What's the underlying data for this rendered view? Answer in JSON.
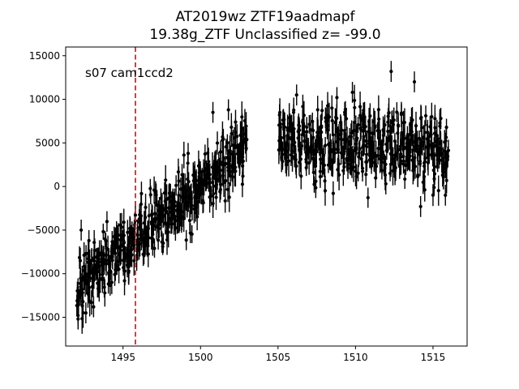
{
  "chart_data": {
    "type": "scatter",
    "title_line1": "AT2019wz  ZTF19aadmapf",
    "title_line2": "19.38g_ZTF Unclassified z= -99.0",
    "annotation": "s07 cam1ccd2",
    "xlabel": "",
    "ylabel": "",
    "xlim": [
      1491.3,
      1517.2
    ],
    "ylim": [
      -18300,
      16000
    ],
    "xticks": [
      1495,
      1500,
      1505,
      1510,
      1515
    ],
    "yticks": [
      -15000,
      -10000,
      -5000,
      0,
      5000,
      10000,
      15000
    ],
    "grid": false,
    "marker_color": "#000000",
    "vline": {
      "x": 1495.8,
      "color": "#d62728",
      "style": "dashed"
    },
    "segments": [
      {
        "x_start": 1492.0,
        "x_end": 1503.0,
        "values": [
          -13500,
          -11000,
          -12500,
          -10800,
          -9800,
          -11200,
          -10500,
          -9600,
          -8900,
          -10200,
          -9300,
          -8700,
          -8200,
          -9500,
          -8800,
          -7600,
          -8400,
          -7900,
          -6800,
          -7500,
          -6900,
          -8100,
          -7200,
          -6400,
          -5200,
          -6100,
          -5600,
          -4800,
          -5900,
          -4200,
          -5100,
          -3800,
          -4600,
          -3500,
          -4200,
          -3100,
          -3900,
          -2600,
          -3400,
          -2200,
          -2900,
          -1800,
          -2500,
          -1300,
          -2100,
          -900,
          -1700,
          -500,
          -1200,
          -100,
          -800,
          300,
          -400,
          800,
          100,
          1200,
          500,
          1700,
          900,
          2200,
          1400,
          2600,
          1800,
          3100,
          2300,
          3600,
          2700,
          4000,
          3200,
          4400,
          3600,
          4800
        ]
      },
      {
        "x_start": 1505.0,
        "x_end": 1516.0,
        "values": [
          6500,
          4200,
          5800,
          3600,
          5200,
          4800,
          6100,
          3900,
          5500,
          4300,
          6800,
          3500,
          5900,
          4700,
          5300,
          2800,
          6300,
          4100,
          5600,
          3300,
          6900,
          4500,
          5100,
          2600,
          6200,
          3800,
          5700,
          4400,
          6600,
          3100,
          5400,
          4900,
          6000,
          3400,
          5800,
          4200,
          6400,
          2900,
          5500,
          4600,
          5200,
          3700,
          6700,
          4000,
          5300,
          3200,
          5900,
          4800,
          5000,
          2700,
          6100,
          3600,
          5600,
          4300,
          4900,
          3000,
          5800,
          4100,
          5400,
          3500,
          6200,
          2800,
          5100,
          4400,
          5700,
          3300,
          4800,
          3900,
          5500,
          3100,
          5000,
          4200
        ]
      }
    ],
    "outliers": [
      {
        "x": 1492.1,
        "y": -15200
      },
      {
        "x": 1492.6,
        "y": -14500
      },
      {
        "x": 1493.1,
        "y": -13800
      },
      {
        "x": 1492.3,
        "y": -5000
      },
      {
        "x": 1492.8,
        "y": -6200
      },
      {
        "x": 1499.2,
        "y": 3800
      },
      {
        "x": 1500.8,
        "y": 8500
      },
      {
        "x": 1501.8,
        "y": 8800
      },
      {
        "x": 1506.2,
        "y": 10500
      },
      {
        "x": 1508.8,
        "y": 10200
      },
      {
        "x": 1509.8,
        "y": 10800
      },
      {
        "x": 1512.3,
        "y": 13200
      },
      {
        "x": 1513.8,
        "y": 12000
      },
      {
        "x": 1514.2,
        "y": -2300
      },
      {
        "x": 1515.8,
        "y": -1000
      }
    ]
  }
}
